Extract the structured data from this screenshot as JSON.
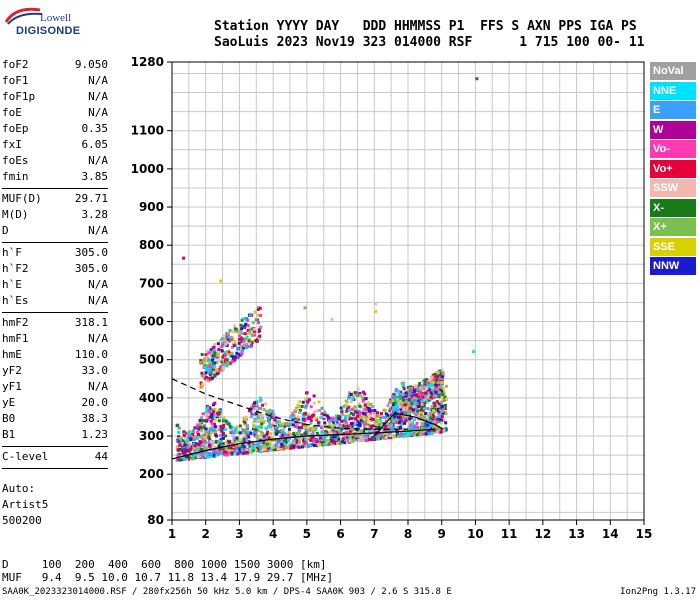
{
  "logo": {
    "line1": "Lowell",
    "line2": "DIGISONDE"
  },
  "header": {
    "row1": "Station YYYY DAY   DDD HHMMSS P1  FFS S AXN PPS IGA PS",
    "row2": "SaoLuis 2023 Nov19 323 014000 RSF      1 715 100 00- 11"
  },
  "params": [
    {
      "k": "foF2",
      "v": "9.050"
    },
    {
      "k": "foF1",
      "v": "N/A"
    },
    {
      "k": "foF1p",
      "v": "N/A"
    },
    {
      "k": "foE",
      "v": "N/A"
    },
    {
      "k": "foEp",
      "v": "0.35"
    },
    {
      "k": "fxI",
      "v": "6.05"
    },
    {
      "k": "foEs",
      "v": "N/A"
    },
    {
      "k": "fmin",
      "v": "3.85"
    },
    {
      "k": "MUF(D)",
      "v": "29.71"
    },
    {
      "k": "M(D)",
      "v": "3.28"
    },
    {
      "k": "D",
      "v": "N/A"
    },
    {
      "k": "h`F",
      "v": "305.0"
    },
    {
      "k": "h`F2",
      "v": "305.0"
    },
    {
      "k": "h`E",
      "v": "N/A"
    },
    {
      "k": "h`Es",
      "v": "N/A"
    },
    {
      "k": "hmF2",
      "v": "318.1"
    },
    {
      "k": "hmF1",
      "v": "N/A"
    },
    {
      "k": "hmE",
      "v": "110.0"
    },
    {
      "k": "yF2",
      "v": "33.0"
    },
    {
      "k": "yF1",
      "v": "N/A"
    },
    {
      "k": "yE",
      "v": "20.0"
    },
    {
      "k": "B0",
      "v": "38.3"
    },
    {
      "k": "B1",
      "v": "1.23"
    },
    {
      "k": "C-level",
      "v": "44"
    }
  ],
  "auto": {
    "line1": "Auto:",
    "line2": "Artist5",
    "line3": "500200"
  },
  "legend": [
    {
      "label": "NoVal",
      "color": "#a0a0a0"
    },
    {
      "label": "NNE",
      "color": "#00e0ff"
    },
    {
      "label": "E",
      "color": "#3aa0ff"
    },
    {
      "label": "W",
      "color": "#b0009a"
    },
    {
      "label": "Vo-",
      "color": "#ff3ab0"
    },
    {
      "label": "Vo+",
      "color": "#e8003a"
    },
    {
      "label": "SSW",
      "color": "#f2b8b0"
    },
    {
      "label": "X-",
      "color": "#1a7a1a"
    },
    {
      "label": "X+",
      "color": "#7abf50"
    },
    {
      "label": "SSE",
      "color": "#d8d000"
    },
    {
      "label": "NNW",
      "color": "#1a1ad0"
    }
  ],
  "muf_table": {
    "d_row": "D     100  200  400  600  800 1000 1500 3000 [km]",
    "muf_row": "MUF   9.4  9.5 10.0 10.7 11.8 13.4 17.9 29.7 [MHz]"
  },
  "footer": {
    "left": "SAA0K_2023323014000.RSF / 280fx256h 50 kHz 5.0 km / DPS-4 SAA0K 903 / 2.6 S 315.8 E",
    "right": "Ion2Png 1.3.17"
  },
  "chart_data": {
    "type": "scatter",
    "xlabel": "",
    "ylabel": "",
    "x_ticks": [
      1,
      2,
      3,
      4,
      5,
      6,
      7,
      8,
      9,
      10,
      11,
      12,
      13,
      14,
      15
    ],
    "y_ticks": [
      80,
      200,
      300,
      400,
      500,
      600,
      700,
      800,
      900,
      1000,
      1100,
      1280
    ],
    "xlim": [
      1,
      15
    ],
    "ylim": [
      80,
      1280
    ],
    "grid": true,
    "trace_clusters": [
      {
        "name": "main",
        "x_range": [
          1.1,
          9.1
        ],
        "h_base": [
          240,
          315
        ],
        "spread": 120
      },
      {
        "name": "upper",
        "x_range": [
          1.8,
          3.6
        ],
        "h_base": [
          430,
          560
        ],
        "spread": 90
      },
      {
        "name": "dense-f2",
        "x_range": [
          7.5,
          9.0
        ],
        "h_base": [
          340,
          420
        ],
        "spread": 60
      }
    ],
    "profile_line": [
      [
        1.0,
        240
      ],
      [
        2.0,
        262
      ],
      [
        3.0,
        280
      ],
      [
        4.0,
        292
      ],
      [
        5.0,
        300
      ],
      [
        6.0,
        304
      ],
      [
        7.0,
        308
      ],
      [
        8.0,
        313
      ],
      [
        8.8,
        318
      ]
    ],
    "profile_upper": [
      [
        1.0,
        450
      ],
      [
        2.0,
        410
      ],
      [
        3.0,
        380
      ],
      [
        4.0,
        350
      ],
      [
        5.0,
        330
      ],
      [
        6.0,
        320
      ],
      [
        7.0,
        318
      ],
      [
        8.0,
        318
      ]
    ],
    "profile_tail": [
      [
        7.0,
        300
      ],
      [
        7.6,
        360
      ],
      [
        8.2,
        350
      ],
      [
        8.8,
        330
      ],
      [
        9.05,
        318
      ]
    ]
  }
}
